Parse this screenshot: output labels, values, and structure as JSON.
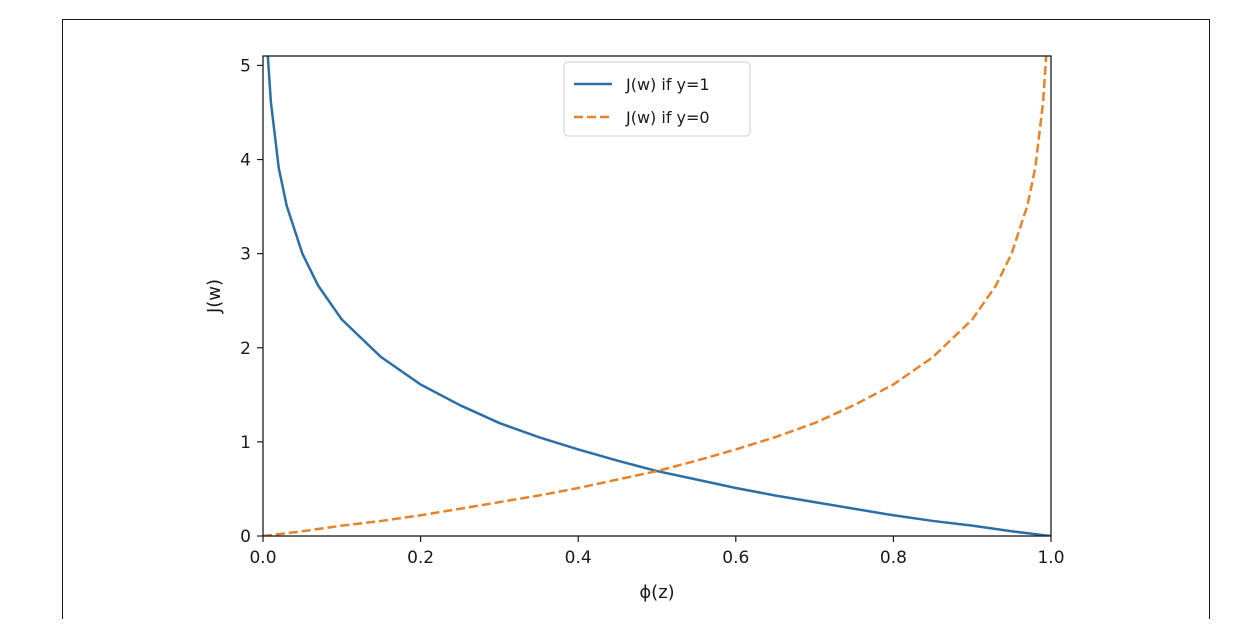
{
  "chart_data": {
    "type": "line",
    "title": "",
    "xlabel": "ϕ(z)",
    "ylabel": "J(w)",
    "xlim": [
      0.0,
      1.0
    ],
    "ylim": [
      0,
      5.1
    ],
    "xticks": [
      0.0,
      0.2,
      0.4,
      0.6,
      0.8,
      1.0
    ],
    "xtick_labels": [
      "0.0",
      "0.2",
      "0.4",
      "0.6",
      "0.8",
      "1.0"
    ],
    "yticks": [
      0,
      1,
      2,
      3,
      4,
      5
    ],
    "ytick_labels": [
      "0",
      "1",
      "2",
      "3",
      "4",
      "5"
    ],
    "grid": false,
    "legend_position": "top-center",
    "series": [
      {
        "name": "J(w) if y=1",
        "color": "#2a6fa8",
        "style": "solid",
        "x": [
          0.006,
          0.01,
          0.02,
          0.03,
          0.05,
          0.07,
          0.1,
          0.15,
          0.2,
          0.25,
          0.3,
          0.35,
          0.4,
          0.45,
          0.5,
          0.55,
          0.6,
          0.65,
          0.7,
          0.75,
          0.8,
          0.85,
          0.9,
          0.95,
          0.99,
          1.0
        ],
        "y": [
          5.12,
          4.61,
          3.91,
          3.51,
          3.0,
          2.66,
          2.3,
          1.9,
          1.61,
          1.39,
          1.2,
          1.05,
          0.92,
          0.8,
          0.69,
          0.6,
          0.51,
          0.43,
          0.36,
          0.29,
          0.22,
          0.16,
          0.11,
          0.05,
          0.01,
          0.0
        ]
      },
      {
        "name": "J(w) if y=0",
        "color": "#e8822a",
        "style": "dashed",
        "x": [
          0.0,
          0.01,
          0.05,
          0.1,
          0.15,
          0.2,
          0.25,
          0.3,
          0.35,
          0.4,
          0.45,
          0.5,
          0.55,
          0.6,
          0.65,
          0.7,
          0.75,
          0.8,
          0.85,
          0.9,
          0.93,
          0.95,
          0.97,
          0.98,
          0.99,
          0.994
        ],
        "y": [
          0.0,
          0.01,
          0.05,
          0.11,
          0.16,
          0.22,
          0.29,
          0.36,
          0.43,
          0.51,
          0.6,
          0.69,
          0.8,
          0.92,
          1.05,
          1.2,
          1.39,
          1.61,
          1.9,
          2.3,
          2.66,
          3.0,
          3.51,
          3.91,
          4.61,
          5.12
        ]
      }
    ]
  }
}
